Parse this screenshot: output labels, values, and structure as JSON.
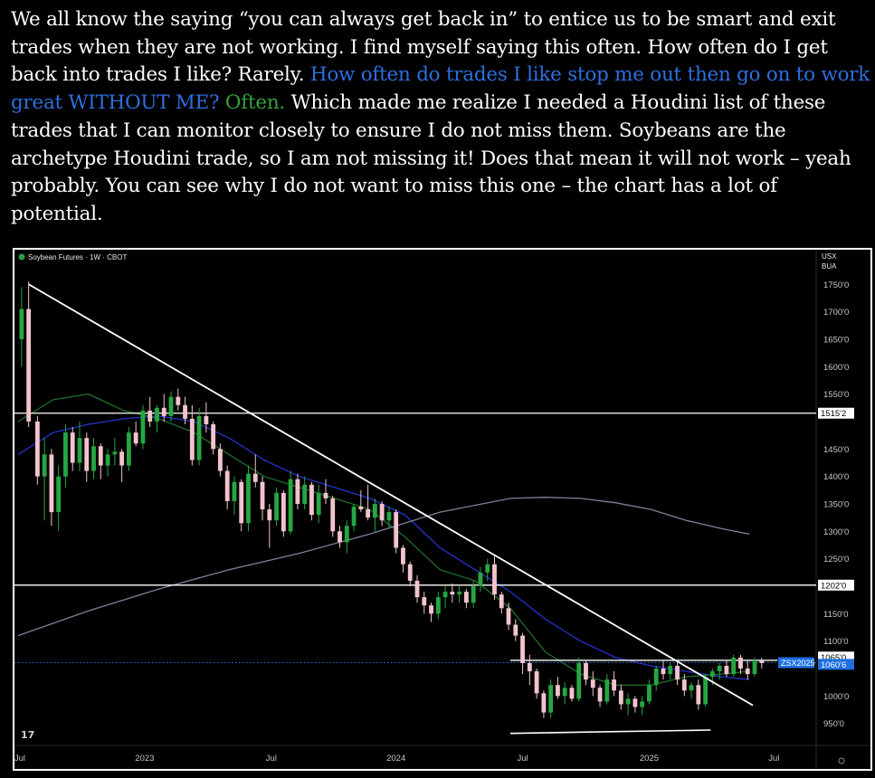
{
  "intro": {
    "seg1": "We all know the saying “you can always get back in” to entice us to be smart and exit trades when they are not working. I find myself saying this often. How often do I get back into trades I like? Rarely. ",
    "seg2": "How often do trades I like stop me out then go on to work great WITHOUT ME?",
    "seg3": " ",
    "seg4": "Often.",
    "seg5": " Which made me realize I needed a Houdini list of these trades that I can monitor closely to ensure I do not miss them. Soybeans are the archetype Houdini trade, so I am not missing it! Does that mean it will not work – yeah probably. You can see why I do not want to miss this one – the chart has a lot of potential."
  },
  "colors": {
    "background": "#000000",
    "text": "#ffffff",
    "blue_text": "#2f6fe0",
    "green_text": "#34a43a",
    "bull_candle": "#26a641",
    "bear_candle": "#f2c4cc",
    "ma_blue": "#2233cc",
    "ma_green": "#1e6e28",
    "ma_grey": "#7f7f9a",
    "price_tag": "#1d6fe0"
  },
  "chart_data": {
    "type": "candlestick",
    "header": "Soybean Futures · 1W · CBOT",
    "currency": "USX",
    "unit": "BUA",
    "y_ticks": [
      "1750'0",
      "1700'0",
      "1650'0",
      "1600'0",
      "1550'0",
      "1450'0",
      "1400'0",
      "1350'0",
      "1300'0",
      "1250'0",
      "1150'0",
      "1100'0",
      "1000'0",
      "950'0"
    ],
    "y_tick_values": [
      1750,
      1700,
      1650,
      1600,
      1550,
      1450,
      1400,
      1350,
      1300,
      1250,
      1150,
      1100,
      1000,
      950
    ],
    "ylim": [
      910,
      1790
    ],
    "x_labels": [
      "Jul",
      "2023",
      "Jul",
      "2024",
      "Jul",
      "2025",
      "Jul"
    ],
    "x_label_positions": [
      0.05,
      3.6,
      7.2,
      10.75,
      14.35,
      17.95,
      21.5
    ],
    "x_axis_unit": "months since Jun 2022",
    "xlim": [
      0,
      22.7
    ],
    "price_labels": [
      {
        "text": "1515'2",
        "value": 1515.25
      },
      {
        "text": "1202'0",
        "value": 1202
      },
      {
        "text": "1065'0",
        "value": 1065
      },
      {
        "text": "1060'6",
        "value": 1060.75
      },
      {
        "text": "ZSX2025",
        "value": 1060.75
      }
    ],
    "horizontal_lines": [
      1515.25,
      1202
    ],
    "resistance_segment": {
      "x": [
        14.0,
        21.6
      ],
      "value": 1065
    },
    "trendline": {
      "x": [
        0.3,
        20.9
      ],
      "y": [
        1750,
        983
      ]
    },
    "lower_line": {
      "x": [
        14.0,
        19.7
      ],
      "y": [
        932,
        938
      ]
    },
    "candles": [
      {
        "x": 0.1,
        "o": 1650,
        "h": 1745,
        "l": 1600,
        "c": 1705
      },
      {
        "x": 0.3,
        "o": 1705,
        "h": 1755,
        "l": 1490,
        "c": 1500
      },
      {
        "x": 0.55,
        "o": 1500,
        "h": 1510,
        "l": 1385,
        "c": 1400
      },
      {
        "x": 0.75,
        "o": 1400,
        "h": 1470,
        "l": 1320,
        "c": 1440
      },
      {
        "x": 0.95,
        "o": 1440,
        "h": 1450,
        "l": 1310,
        "c": 1335
      },
      {
        "x": 1.15,
        "o": 1335,
        "h": 1420,
        "l": 1300,
        "c": 1400
      },
      {
        "x": 1.35,
        "o": 1400,
        "h": 1495,
        "l": 1380,
        "c": 1480
      },
      {
        "x": 1.55,
        "o": 1480,
        "h": 1490,
        "l": 1410,
        "c": 1425
      },
      {
        "x": 1.75,
        "o": 1425,
        "h": 1500,
        "l": 1410,
        "c": 1470
      },
      {
        "x": 1.95,
        "o": 1470,
        "h": 1480,
        "l": 1390,
        "c": 1410
      },
      {
        "x": 2.15,
        "o": 1410,
        "h": 1470,
        "l": 1395,
        "c": 1455
      },
      {
        "x": 2.35,
        "o": 1455,
        "h": 1460,
        "l": 1395,
        "c": 1420
      },
      {
        "x": 2.55,
        "o": 1420,
        "h": 1450,
        "l": 1400,
        "c": 1440
      },
      {
        "x": 2.75,
        "o": 1440,
        "h": 1470,
        "l": 1420,
        "c": 1445
      },
      {
        "x": 2.95,
        "o": 1445,
        "h": 1450,
        "l": 1390,
        "c": 1420
      },
      {
        "x": 3.15,
        "o": 1420,
        "h": 1490,
        "l": 1410,
        "c": 1480
      },
      {
        "x": 3.35,
        "o": 1480,
        "h": 1500,
        "l": 1455,
        "c": 1460
      },
      {
        "x": 3.55,
        "o": 1460,
        "h": 1530,
        "l": 1450,
        "c": 1520
      },
      {
        "x": 3.75,
        "o": 1520,
        "h": 1545,
        "l": 1490,
        "c": 1500
      },
      {
        "x": 3.95,
        "o": 1500,
        "h": 1530,
        "l": 1480,
        "c": 1525
      },
      {
        "x": 4.15,
        "o": 1525,
        "h": 1550,
        "l": 1500,
        "c": 1510
      },
      {
        "x": 4.35,
        "o": 1510,
        "h": 1555,
        "l": 1500,
        "c": 1545
      },
      {
        "x": 4.55,
        "o": 1545,
        "h": 1560,
        "l": 1520,
        "c": 1530
      },
      {
        "x": 4.75,
        "o": 1530,
        "h": 1545,
        "l": 1495,
        "c": 1505
      },
      {
        "x": 4.95,
        "o": 1505,
        "h": 1530,
        "l": 1420,
        "c": 1430
      },
      {
        "x": 5.15,
        "o": 1430,
        "h": 1525,
        "l": 1420,
        "c": 1510
      },
      {
        "x": 5.35,
        "o": 1510,
        "h": 1535,
        "l": 1480,
        "c": 1495
      },
      {
        "x": 5.55,
        "o": 1495,
        "h": 1500,
        "l": 1440,
        "c": 1450
      },
      {
        "x": 5.75,
        "o": 1450,
        "h": 1460,
        "l": 1400,
        "c": 1410
      },
      {
        "x": 5.95,
        "o": 1410,
        "h": 1420,
        "l": 1340,
        "c": 1355
      },
      {
        "x": 6.15,
        "o": 1355,
        "h": 1400,
        "l": 1330,
        "c": 1390
      },
      {
        "x": 6.35,
        "o": 1390,
        "h": 1395,
        "l": 1300,
        "c": 1315
      },
      {
        "x": 6.55,
        "o": 1315,
        "h": 1420,
        "l": 1300,
        "c": 1405
      },
      {
        "x": 6.75,
        "o": 1405,
        "h": 1440,
        "l": 1380,
        "c": 1390
      },
      {
        "x": 6.95,
        "o": 1390,
        "h": 1400,
        "l": 1320,
        "c": 1340
      },
      {
        "x": 7.15,
        "o": 1340,
        "h": 1350,
        "l": 1270,
        "c": 1320
      },
      {
        "x": 7.35,
        "o": 1320,
        "h": 1380,
        "l": 1310,
        "c": 1370
      },
      {
        "x": 7.55,
        "o": 1370,
        "h": 1375,
        "l": 1290,
        "c": 1300
      },
      {
        "x": 7.75,
        "o": 1300,
        "h": 1410,
        "l": 1295,
        "c": 1395
      },
      {
        "x": 7.95,
        "o": 1395,
        "h": 1405,
        "l": 1340,
        "c": 1350
      },
      {
        "x": 8.15,
        "o": 1350,
        "h": 1400,
        "l": 1340,
        "c": 1385
      },
      {
        "x": 8.35,
        "o": 1385,
        "h": 1390,
        "l": 1320,
        "c": 1330
      },
      {
        "x": 8.55,
        "o": 1330,
        "h": 1385,
        "l": 1315,
        "c": 1370
      },
      {
        "x": 8.75,
        "o": 1370,
        "h": 1395,
        "l": 1350,
        "c": 1360
      },
      {
        "x": 8.95,
        "o": 1360,
        "h": 1365,
        "l": 1290,
        "c": 1300
      },
      {
        "x": 9.15,
        "o": 1300,
        "h": 1310,
        "l": 1270,
        "c": 1280
      },
      {
        "x": 9.35,
        "o": 1280,
        "h": 1320,
        "l": 1260,
        "c": 1310
      },
      {
        "x": 9.55,
        "o": 1310,
        "h": 1350,
        "l": 1300,
        "c": 1345
      },
      {
        "x": 9.75,
        "o": 1345,
        "h": 1375,
        "l": 1335,
        "c": 1340
      },
      {
        "x": 9.95,
        "o": 1340,
        "h": 1385,
        "l": 1320,
        "c": 1325
      },
      {
        "x": 10.15,
        "o": 1325,
        "h": 1360,
        "l": 1300,
        "c": 1350
      },
      {
        "x": 10.35,
        "o": 1350,
        "h": 1355,
        "l": 1310,
        "c": 1320
      },
      {
        "x": 10.55,
        "o": 1320,
        "h": 1345,
        "l": 1305,
        "c": 1335
      },
      {
        "x": 10.75,
        "o": 1335,
        "h": 1340,
        "l": 1260,
        "c": 1270
      },
      {
        "x": 10.95,
        "o": 1270,
        "h": 1275,
        "l": 1225,
        "c": 1240
      },
      {
        "x": 11.15,
        "o": 1240,
        "h": 1245,
        "l": 1200,
        "c": 1210
      },
      {
        "x": 11.35,
        "o": 1210,
        "h": 1220,
        "l": 1170,
        "c": 1180
      },
      {
        "x": 11.55,
        "o": 1180,
        "h": 1190,
        "l": 1150,
        "c": 1165
      },
      {
        "x": 11.75,
        "o": 1165,
        "h": 1170,
        "l": 1135,
        "c": 1150
      },
      {
        "x": 11.95,
        "o": 1150,
        "h": 1190,
        "l": 1140,
        "c": 1180
      },
      {
        "x": 12.15,
        "o": 1180,
        "h": 1200,
        "l": 1160,
        "c": 1190
      },
      {
        "x": 12.35,
        "o": 1190,
        "h": 1205,
        "l": 1170,
        "c": 1185
      },
      {
        "x": 12.55,
        "o": 1185,
        "h": 1200,
        "l": 1170,
        "c": 1190
      },
      {
        "x": 12.75,
        "o": 1190,
        "h": 1195,
        "l": 1160,
        "c": 1170
      },
      {
        "x": 12.95,
        "o": 1170,
        "h": 1210,
        "l": 1160,
        "c": 1200
      },
      {
        "x": 13.15,
        "o": 1200,
        "h": 1235,
        "l": 1190,
        "c": 1225
      },
      {
        "x": 13.35,
        "o": 1225,
        "h": 1250,
        "l": 1210,
        "c": 1240
      },
      {
        "x": 13.55,
        "o": 1240,
        "h": 1255,
        "l": 1175,
        "c": 1185
      },
      {
        "x": 13.75,
        "o": 1185,
        "h": 1190,
        "l": 1150,
        "c": 1160
      },
      {
        "x": 13.95,
        "o": 1160,
        "h": 1170,
        "l": 1120,
        "c": 1130
      },
      {
        "x": 14.15,
        "o": 1130,
        "h": 1140,
        "l": 1100,
        "c": 1110
      },
      {
        "x": 14.35,
        "o": 1110,
        "h": 1115,
        "l": 1040,
        "c": 1060
      },
      {
        "x": 14.55,
        "o": 1060,
        "h": 1075,
        "l": 1020,
        "c": 1045
      },
      {
        "x": 14.75,
        "o": 1045,
        "h": 1050,
        "l": 995,
        "c": 1005
      },
      {
        "x": 14.95,
        "o": 1005,
        "h": 1010,
        "l": 960,
        "c": 970
      },
      {
        "x": 15.15,
        "o": 970,
        "h": 1030,
        "l": 960,
        "c": 1020
      },
      {
        "x": 15.35,
        "o": 1020,
        "h": 1035,
        "l": 995,
        "c": 1000
      },
      {
        "x": 15.55,
        "o": 1000,
        "h": 1025,
        "l": 985,
        "c": 1015
      },
      {
        "x": 15.75,
        "o": 1015,
        "h": 1020,
        "l": 990,
        "c": 995
      },
      {
        "x": 15.95,
        "o": 995,
        "h": 1070,
        "l": 990,
        "c": 1060
      },
      {
        "x": 16.15,
        "o": 1060,
        "h": 1065,
        "l": 1020,
        "c": 1030
      },
      {
        "x": 16.35,
        "o": 1030,
        "h": 1045,
        "l": 1000,
        "c": 1015
      },
      {
        "x": 16.55,
        "o": 1015,
        "h": 1020,
        "l": 980,
        "c": 990
      },
      {
        "x": 16.75,
        "o": 990,
        "h": 1040,
        "l": 985,
        "c": 1030
      },
      {
        "x": 16.95,
        "o": 1030,
        "h": 1045,
        "l": 1000,
        "c": 1010
      },
      {
        "x": 17.15,
        "o": 1010,
        "h": 1020,
        "l": 975,
        "c": 985
      },
      {
        "x": 17.35,
        "o": 985,
        "h": 1005,
        "l": 965,
        "c": 995
      },
      {
        "x": 17.55,
        "o": 995,
        "h": 1000,
        "l": 970,
        "c": 980
      },
      {
        "x": 17.75,
        "o": 980,
        "h": 1000,
        "l": 965,
        "c": 990
      },
      {
        "x": 17.95,
        "o": 990,
        "h": 1030,
        "l": 985,
        "c": 1020
      },
      {
        "x": 18.15,
        "o": 1020,
        "h": 1055,
        "l": 1010,
        "c": 1050
      },
      {
        "x": 18.35,
        "o": 1050,
        "h": 1065,
        "l": 1030,
        "c": 1040
      },
      {
        "x": 18.55,
        "o": 1040,
        "h": 1060,
        "l": 1030,
        "c": 1055
      },
      {
        "x": 18.75,
        "o": 1055,
        "h": 1060,
        "l": 1020,
        "c": 1030
      },
      {
        "x": 18.95,
        "o": 1030,
        "h": 1040,
        "l": 1000,
        "c": 1010
      },
      {
        "x": 19.15,
        "o": 1010,
        "h": 1025,
        "l": 995,
        "c": 1020
      },
      {
        "x": 19.35,
        "o": 1020,
        "h": 1030,
        "l": 975,
        "c": 985
      },
      {
        "x": 19.55,
        "o": 985,
        "h": 1040,
        "l": 980,
        "c": 1035
      },
      {
        "x": 19.75,
        "o": 1035,
        "h": 1050,
        "l": 1020,
        "c": 1045
      },
      {
        "x": 19.95,
        "o": 1045,
        "h": 1060,
        "l": 1030,
        "c": 1055
      },
      {
        "x": 20.15,
        "o": 1055,
        "h": 1065,
        "l": 1035,
        "c": 1040
      },
      {
        "x": 20.35,
        "o": 1040,
        "h": 1075,
        "l": 1035,
        "c": 1070
      },
      {
        "x": 20.55,
        "o": 1070,
        "h": 1075,
        "l": 1040,
        "c": 1050
      },
      {
        "x": 20.75,
        "o": 1050,
        "h": 1065,
        "l": 1030,
        "c": 1040
      },
      {
        "x": 20.95,
        "o": 1040,
        "h": 1070,
        "l": 1035,
        "c": 1065
      },
      {
        "x": 21.15,
        "o": 1065,
        "h": 1070,
        "l": 1050,
        "c": 1060
      }
    ],
    "ma_series": [
      {
        "color": "#2233cc",
        "points": [
          [
            0,
            1440
          ],
          [
            1,
            1480
          ],
          [
            2,
            1495
          ],
          [
            3,
            1505
          ],
          [
            4,
            1510
          ],
          [
            5,
            1500
          ],
          [
            6,
            1470
          ],
          [
            7,
            1430
          ],
          [
            8,
            1400
          ],
          [
            9,
            1380
          ],
          [
            10,
            1360
          ],
          [
            11,
            1330
          ],
          [
            12,
            1270
          ],
          [
            13,
            1230
          ],
          [
            14,
            1190
          ],
          [
            15,
            1140
          ],
          [
            16,
            1100
          ],
          [
            17,
            1070
          ],
          [
            18,
            1055
          ],
          [
            19,
            1045
          ],
          [
            20,
            1035
          ],
          [
            20.8,
            1030
          ]
        ]
      },
      {
        "color": "#1e6e28",
        "points": [
          [
            0,
            1500
          ],
          [
            1,
            1540
          ],
          [
            2,
            1550
          ],
          [
            3,
            1520
          ],
          [
            4,
            1505
          ],
          [
            5,
            1480
          ],
          [
            6,
            1440
          ],
          [
            7,
            1400
          ],
          [
            8,
            1380
          ],
          [
            9,
            1360
          ],
          [
            10,
            1340
          ],
          [
            11,
            1290
          ],
          [
            12,
            1230
          ],
          [
            13,
            1210
          ],
          [
            14,
            1160
          ],
          [
            15,
            1080
          ],
          [
            16,
            1040
          ],
          [
            17,
            1020
          ],
          [
            18,
            1020
          ],
          [
            19,
            1035
          ],
          [
            20,
            1040
          ],
          [
            20.8,
            1045
          ]
        ]
      },
      {
        "color": "#7f7f9a",
        "points": [
          [
            0,
            1110
          ],
          [
            2,
            1155
          ],
          [
            4,
            1195
          ],
          [
            6,
            1230
          ],
          [
            8,
            1260
          ],
          [
            10,
            1295
          ],
          [
            12,
            1335
          ],
          [
            14,
            1360
          ],
          [
            15,
            1362
          ],
          [
            16,
            1360
          ],
          [
            17,
            1352
          ],
          [
            18,
            1340
          ],
          [
            19,
            1320
          ],
          [
            20,
            1305
          ],
          [
            20.8,
            1295
          ]
        ]
      }
    ]
  }
}
